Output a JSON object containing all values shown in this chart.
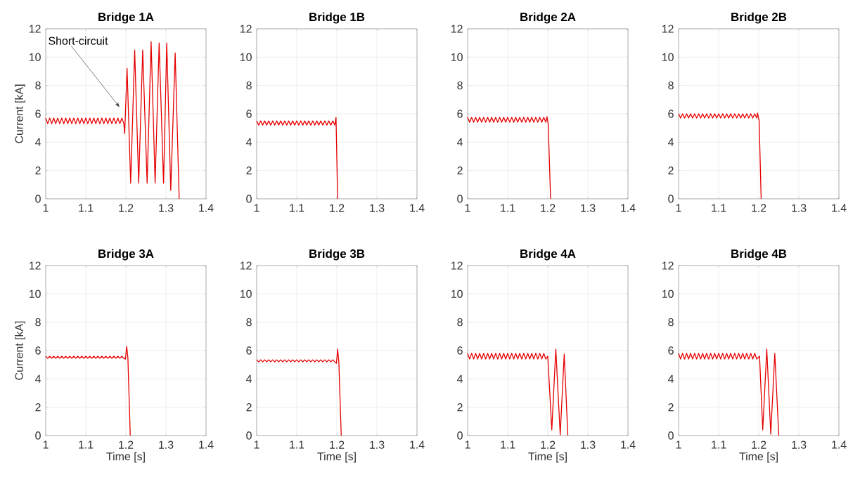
{
  "chart_data": [
    {
      "type": "line",
      "title": "Bridge 1A",
      "ylabel": "Current [kA]",
      "color": "#e60000",
      "grid": true,
      "xlim": [
        1,
        1.4
      ],
      "ylim": [
        0,
        12
      ],
      "xticks": [
        1,
        1.1,
        1.2,
        1.3,
        1.4
      ],
      "yticks": [
        0,
        2,
        4,
        6,
        8,
        10,
        12
      ],
      "x": [
        1,
        1.005,
        1.01,
        1.015,
        1.02,
        1.025,
        1.03,
        1.035,
        1.04,
        1.045,
        1.05,
        1.055,
        1.06,
        1.065,
        1.07,
        1.075,
        1.08,
        1.085,
        1.09,
        1.095,
        1.1,
        1.105,
        1.11,
        1.115,
        1.12,
        1.125,
        1.13,
        1.135,
        1.14,
        1.145,
        1.15,
        1.155,
        1.16,
        1.165,
        1.17,
        1.175,
        1.18,
        1.185,
        1.19,
        1.195,
        1.197,
        1.203,
        1.212,
        1.222,
        1.232,
        1.242,
        1.253,
        1.263,
        1.273,
        1.283,
        1.294,
        1.302,
        1.312,
        1.323,
        1.333
      ],
      "values": [
        5.7,
        5.3,
        5.7,
        5.3,
        5.7,
        5.3,
        5.7,
        5.3,
        5.7,
        5.3,
        5.7,
        5.3,
        5.7,
        5.3,
        5.7,
        5.3,
        5.7,
        5.3,
        5.7,
        5.3,
        5.7,
        5.3,
        5.7,
        5.3,
        5.7,
        5.3,
        5.7,
        5.3,
        5.7,
        5.3,
        5.7,
        5.3,
        5.7,
        5.3,
        5.7,
        5.3,
        5.7,
        5.3,
        5.7,
        5.3,
        4.6,
        9.2,
        1.1,
        10.5,
        1.1,
        10.5,
        1.1,
        11.1,
        1.1,
        11.0,
        1.1,
        11.0,
        0.6,
        10.3,
        0
      ],
      "annotations": [
        "Short-circuit"
      ]
    },
    {
      "type": "line",
      "title": "Bridge 1B",
      "color": "#e60000",
      "grid": true,
      "xlim": [
        1,
        1.4
      ],
      "ylim": [
        0,
        12
      ],
      "xticks": [
        1,
        1.1,
        1.2,
        1.3,
        1.4
      ],
      "yticks": [
        0,
        2,
        4,
        6,
        8,
        10,
        12
      ],
      "x": [
        1,
        1.005,
        1.01,
        1.015,
        1.02,
        1.025,
        1.03,
        1.035,
        1.04,
        1.045,
        1.05,
        1.055,
        1.06,
        1.065,
        1.07,
        1.075,
        1.08,
        1.085,
        1.09,
        1.095,
        1.1,
        1.105,
        1.11,
        1.115,
        1.12,
        1.125,
        1.13,
        1.135,
        1.14,
        1.145,
        1.15,
        1.155,
        1.16,
        1.165,
        1.17,
        1.175,
        1.18,
        1.185,
        1.19,
        1.195,
        1.198,
        1.202
      ],
      "values": [
        5.5,
        5.2,
        5.5,
        5.2,
        5.5,
        5.2,
        5.5,
        5.2,
        5.5,
        5.2,
        5.5,
        5.2,
        5.5,
        5.2,
        5.5,
        5.2,
        5.5,
        5.2,
        5.5,
        5.2,
        5.5,
        5.2,
        5.5,
        5.2,
        5.5,
        5.2,
        5.5,
        5.2,
        5.5,
        5.2,
        5.5,
        5.2,
        5.5,
        5.2,
        5.5,
        5.2,
        5.5,
        5.2,
        5.5,
        5.2,
        5.75,
        0
      ]
    },
    {
      "type": "line",
      "title": "Bridge 2A",
      "color": "#e60000",
      "grid": true,
      "xlim": [
        1,
        1.4
      ],
      "ylim": [
        0,
        12
      ],
      "xticks": [
        1,
        1.1,
        1.2,
        1.3,
        1.4
      ],
      "yticks": [
        0,
        2,
        4,
        6,
        8,
        10,
        12
      ],
      "x": [
        1,
        1.005,
        1.01,
        1.015,
        1.02,
        1.025,
        1.03,
        1.035,
        1.04,
        1.045,
        1.05,
        1.055,
        1.06,
        1.065,
        1.07,
        1.075,
        1.08,
        1.085,
        1.09,
        1.095,
        1.1,
        1.105,
        1.11,
        1.115,
        1.12,
        1.125,
        1.13,
        1.135,
        1.14,
        1.145,
        1.15,
        1.155,
        1.16,
        1.165,
        1.17,
        1.175,
        1.18,
        1.185,
        1.19,
        1.195,
        1.198,
        1.201,
        1.207
      ],
      "values": [
        5.75,
        5.4,
        5.75,
        5.4,
        5.75,
        5.4,
        5.75,
        5.4,
        5.75,
        5.4,
        5.75,
        5.4,
        5.75,
        5.4,
        5.75,
        5.4,
        5.75,
        5.4,
        5.75,
        5.4,
        5.75,
        5.4,
        5.75,
        5.4,
        5.75,
        5.4,
        5.75,
        5.4,
        5.75,
        5.4,
        5.75,
        5.4,
        5.75,
        5.4,
        5.75,
        5.4,
        5.75,
        5.4,
        5.75,
        5.4,
        5.8,
        5.3,
        0
      ]
    },
    {
      "type": "line",
      "title": "Bridge 2B",
      "color": "#e60000",
      "grid": true,
      "xlim": [
        1,
        1.4
      ],
      "ylim": [
        0,
        12
      ],
      "xticks": [
        1,
        1.1,
        1.2,
        1.3,
        1.4
      ],
      "yticks": [
        0,
        2,
        4,
        6,
        8,
        10,
        12
      ],
      "x": [
        1,
        1.005,
        1.01,
        1.015,
        1.02,
        1.025,
        1.03,
        1.035,
        1.04,
        1.045,
        1.05,
        1.055,
        1.06,
        1.065,
        1.07,
        1.075,
        1.08,
        1.085,
        1.09,
        1.095,
        1.1,
        1.105,
        1.11,
        1.115,
        1.12,
        1.125,
        1.13,
        1.135,
        1.14,
        1.145,
        1.15,
        1.155,
        1.16,
        1.165,
        1.17,
        1.175,
        1.18,
        1.185,
        1.19,
        1.195,
        1.197,
        1.201,
        1.206
      ],
      "values": [
        6.0,
        5.7,
        6.0,
        5.7,
        6.0,
        5.7,
        6.0,
        5.7,
        6.0,
        5.7,
        6.0,
        5.7,
        6.0,
        5.7,
        6.0,
        5.7,
        6.0,
        5.7,
        6.0,
        5.7,
        6.0,
        5.7,
        6.0,
        5.7,
        6.0,
        5.7,
        6.0,
        5.7,
        6.0,
        5.7,
        6.0,
        5.7,
        6.0,
        5.7,
        6.0,
        5.7,
        6.0,
        5.7,
        6.0,
        5.7,
        6.05,
        5.5,
        0
      ]
    },
    {
      "type": "line",
      "title": "Bridge 3A",
      "ylabel": "Current [kA]",
      "xlabel": "Time [s]",
      "color": "#e60000",
      "grid": true,
      "xlim": [
        1,
        1.4
      ],
      "ylim": [
        0,
        12
      ],
      "xticks": [
        1,
        1.1,
        1.2,
        1.3,
        1.4
      ],
      "yticks": [
        0,
        2,
        4,
        6,
        8,
        10,
        12
      ],
      "x": [
        1,
        1.005,
        1.01,
        1.015,
        1.02,
        1.025,
        1.03,
        1.035,
        1.04,
        1.045,
        1.05,
        1.055,
        1.06,
        1.065,
        1.07,
        1.075,
        1.08,
        1.085,
        1.09,
        1.095,
        1.1,
        1.105,
        1.11,
        1.115,
        1.12,
        1.125,
        1.13,
        1.135,
        1.14,
        1.145,
        1.15,
        1.155,
        1.16,
        1.165,
        1.17,
        1.175,
        1.18,
        1.185,
        1.19,
        1.195,
        1.199,
        1.202,
        1.205,
        1.211
      ],
      "values": [
        5.6,
        5.45,
        5.6,
        5.45,
        5.6,
        5.45,
        5.6,
        5.45,
        5.6,
        5.45,
        5.6,
        5.45,
        5.6,
        5.45,
        5.6,
        5.45,
        5.6,
        5.45,
        5.6,
        5.45,
        5.6,
        5.45,
        5.6,
        5.45,
        5.6,
        5.45,
        5.6,
        5.45,
        5.6,
        5.45,
        5.6,
        5.45,
        5.6,
        5.45,
        5.6,
        5.45,
        5.6,
        5.45,
        5.6,
        5.45,
        5.4,
        6.3,
        5.5,
        0
      ]
    },
    {
      "type": "line",
      "title": "Bridge 3B",
      "xlabel": "Time [s]",
      "color": "#e60000",
      "grid": true,
      "xlim": [
        1,
        1.4
      ],
      "ylim": [
        0,
        12
      ],
      "xticks": [
        1,
        1.1,
        1.2,
        1.3,
        1.4
      ],
      "yticks": [
        0,
        2,
        4,
        6,
        8,
        10,
        12
      ],
      "x": [
        1,
        1.005,
        1.01,
        1.015,
        1.02,
        1.025,
        1.03,
        1.035,
        1.04,
        1.045,
        1.05,
        1.055,
        1.06,
        1.065,
        1.07,
        1.075,
        1.08,
        1.085,
        1.09,
        1.095,
        1.1,
        1.105,
        1.11,
        1.115,
        1.12,
        1.125,
        1.13,
        1.135,
        1.14,
        1.145,
        1.15,
        1.155,
        1.16,
        1.165,
        1.17,
        1.175,
        1.18,
        1.185,
        1.19,
        1.195,
        1.199,
        1.202,
        1.205,
        1.211
      ],
      "values": [
        5.35,
        5.2,
        5.35,
        5.2,
        5.35,
        5.2,
        5.35,
        5.2,
        5.35,
        5.2,
        5.35,
        5.2,
        5.35,
        5.2,
        5.35,
        5.2,
        5.35,
        5.2,
        5.35,
        5.2,
        5.35,
        5.2,
        5.35,
        5.2,
        5.35,
        5.2,
        5.35,
        5.2,
        5.35,
        5.2,
        5.35,
        5.2,
        5.35,
        5.2,
        5.35,
        5.2,
        5.35,
        5.2,
        5.35,
        5.2,
        5.1,
        6.1,
        5.2,
        0
      ]
    },
    {
      "type": "line",
      "title": "Bridge 4A",
      "xlabel": "Time [s]",
      "color": "#e60000",
      "grid": true,
      "xlim": [
        1,
        1.4
      ],
      "ylim": [
        0,
        12
      ],
      "xticks": [
        1,
        1.1,
        1.2,
        1.3,
        1.4
      ],
      "yticks": [
        0,
        2,
        4,
        6,
        8,
        10,
        12
      ],
      "x": [
        1,
        1.005,
        1.01,
        1.015,
        1.02,
        1.025,
        1.03,
        1.035,
        1.04,
        1.045,
        1.05,
        1.055,
        1.06,
        1.065,
        1.07,
        1.075,
        1.08,
        1.085,
        1.09,
        1.095,
        1.1,
        1.105,
        1.11,
        1.115,
        1.12,
        1.125,
        1.13,
        1.135,
        1.14,
        1.145,
        1.15,
        1.155,
        1.16,
        1.165,
        1.17,
        1.175,
        1.18,
        1.185,
        1.19,
        1.195,
        1.2,
        1.21,
        1.22,
        1.231,
        1.241,
        1.25
      ],
      "values": [
        5.8,
        5.4,
        5.8,
        5.4,
        5.8,
        5.4,
        5.8,
        5.4,
        5.8,
        5.4,
        5.8,
        5.4,
        5.8,
        5.4,
        5.8,
        5.4,
        5.8,
        5.4,
        5.8,
        5.4,
        5.8,
        5.4,
        5.8,
        5.4,
        5.8,
        5.4,
        5.8,
        5.4,
        5.8,
        5.4,
        5.8,
        5.4,
        5.8,
        5.4,
        5.8,
        5.4,
        5.8,
        5.4,
        5.8,
        5.4,
        5.6,
        0.4,
        6.1,
        0.05,
        5.75,
        0
      ]
    },
    {
      "type": "line",
      "title": "Bridge 4B",
      "xlabel": "Time [s]",
      "color": "#e60000",
      "grid": true,
      "xlim": [
        1,
        1.4
      ],
      "ylim": [
        0,
        12
      ],
      "xticks": [
        1,
        1.1,
        1.2,
        1.3,
        1.4
      ],
      "yticks": [
        0,
        2,
        4,
        6,
        8,
        10,
        12
      ],
      "x": [
        1,
        1.005,
        1.01,
        1.015,
        1.02,
        1.025,
        1.03,
        1.035,
        1.04,
        1.045,
        1.05,
        1.055,
        1.06,
        1.065,
        1.07,
        1.075,
        1.08,
        1.085,
        1.09,
        1.095,
        1.1,
        1.105,
        1.11,
        1.115,
        1.12,
        1.125,
        1.13,
        1.135,
        1.14,
        1.145,
        1.15,
        1.155,
        1.16,
        1.165,
        1.17,
        1.175,
        1.18,
        1.185,
        1.19,
        1.195,
        1.202,
        1.21,
        1.22,
        1.23,
        1.24,
        1.25
      ],
      "values": [
        5.8,
        5.4,
        5.8,
        5.4,
        5.8,
        5.4,
        5.8,
        5.4,
        5.8,
        5.4,
        5.8,
        5.4,
        5.8,
        5.4,
        5.8,
        5.4,
        5.8,
        5.4,
        5.8,
        5.4,
        5.8,
        5.4,
        5.8,
        5.4,
        5.8,
        5.4,
        5.8,
        5.4,
        5.8,
        5.4,
        5.8,
        5.4,
        5.8,
        5.4,
        5.8,
        5.4,
        5.8,
        5.4,
        5.8,
        5.4,
        5.6,
        0.4,
        6.1,
        0.1,
        5.8,
        0
      ]
    }
  ]
}
